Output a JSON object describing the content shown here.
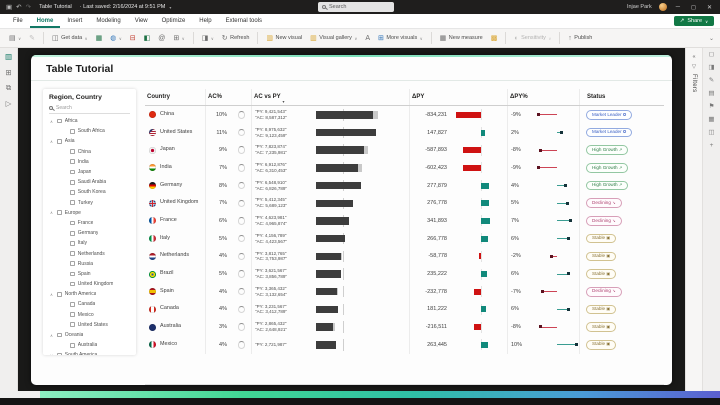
{
  "titlebar": {
    "title": "Table Tutorial",
    "saved_info": "· Last saved: 2/16/2024 at 9:51 PM",
    "search_placeholder": "Search",
    "user_name": "Injae Park"
  },
  "menubar": {
    "items": [
      "File",
      "Home",
      "Insert",
      "Modeling",
      "View",
      "Optimize",
      "Help",
      "External tools"
    ],
    "active": "Home",
    "share_label": "Share"
  },
  "ribbon": {
    "get_data": "Get data",
    "refresh": "Refresh",
    "new_visual": "New visual",
    "visual_gallery": "Visual gallery",
    "more_visuals": "More visuals",
    "new_measure": "New measure",
    "sensitivity": "Sensitivity",
    "publish": "Publish"
  },
  "left_rail": [
    {
      "name": "report-view-icon",
      "glyph": "▥",
      "active": true
    },
    {
      "name": "table-view-icon",
      "glyph": "⊞",
      "active": false
    },
    {
      "name": "model-view-icon",
      "glyph": "⧉",
      "active": false
    },
    {
      "name": "dax-query-view-icon",
      "glyph": "▷",
      "active": false
    }
  ],
  "right_rail": [
    {
      "name": "pane-icon-data",
      "glyph": "◻"
    },
    {
      "name": "pane-icon-build",
      "glyph": "◨"
    },
    {
      "name": "pane-icon-format",
      "glyph": "✎"
    },
    {
      "name": "pane-icon-analytics",
      "glyph": "▤"
    },
    {
      "name": "pane-icon-bookmarks",
      "glyph": "⚑"
    },
    {
      "name": "pane-icon-selection",
      "glyph": "▦"
    },
    {
      "name": "pane-icon-sync",
      "glyph": "◫"
    },
    {
      "name": "add-pane-icon",
      "glyph": "+"
    }
  ],
  "filters_pane": {
    "label": "Filters"
  },
  "report": {
    "title": "Table Tutorial"
  },
  "slicer": {
    "title": "Region, Country",
    "search_placeholder": "Search",
    "tree": [
      {
        "label": "Africa",
        "expanded": true,
        "children": [
          "South Africa"
        ]
      },
      {
        "label": "Asia",
        "expanded": true,
        "children": [
          "China",
          "India",
          "Japan",
          "Saudi Arabia",
          "South Korea",
          "Turkey"
        ]
      },
      {
        "label": "Europe",
        "expanded": true,
        "children": [
          "France",
          "Germany",
          "Italy",
          "Netherlands",
          "Russia",
          "Spain",
          "United Kingdom"
        ]
      },
      {
        "label": "North America",
        "expanded": true,
        "children": [
          "Canada",
          "Mexico",
          "United States"
        ]
      },
      {
        "label": "Oceania",
        "expanded": true,
        "children": [
          "Australia"
        ]
      },
      {
        "label": "South America",
        "expanded": false,
        "children": []
      }
    ]
  },
  "table": {
    "columns": [
      "Country",
      "AC%",
      "AC vs PY",
      "ΔPY",
      "ΔPY%",
      "Status"
    ],
    "sort_column": "AC vs PY",
    "rows": [
      {
        "name": "China",
        "flag": "china",
        "ac_pct": "10%",
        "py_label": "\"PY: 9,421,543\"",
        "ac_label": "\"AC: 8,587,312\"",
        "py": 9421543,
        "ac": 8587312,
        "delta": -834231,
        "delta_label": "-834,231",
        "dpct": -9,
        "dpct_label": "-9%",
        "status": "Market Leader",
        "status_type": "market-leader"
      },
      {
        "name": "United States",
        "flag": "united-states",
        "ac_pct": "11%",
        "py_label": "\"PY: 8,975,632\"",
        "ac_label": "\"AC: 9,123,459\"",
        "py": 8975632,
        "ac": 9123459,
        "delta": 147827,
        "delta_label": "147,827",
        "dpct": 2,
        "dpct_label": "2%",
        "status": "Market Leader",
        "status_type": "market-leader"
      },
      {
        "name": "Japan",
        "flag": "japan",
        "ac_pct": "9%",
        "py_label": "\"PY: 7,823,874\"",
        "ac_label": "\"AC: 7,235,981\"",
        "py": 7823874,
        "ac": 7235981,
        "delta": -587893,
        "delta_label": "-587,893",
        "dpct": -8,
        "dpct_label": "-8%",
        "status": "High Growth",
        "status_type": "high-growth"
      },
      {
        "name": "India",
        "flag": "india",
        "ac_pct": "7%",
        "py_label": "\"PY: 6,912,876\"",
        "ac_label": "\"AC: 6,310,453\"",
        "py": 6912876,
        "ac": 6310453,
        "delta": -602423,
        "delta_label": "-602,423",
        "dpct": -9,
        "dpct_label": "-9%",
        "status": "High Growth",
        "status_type": "high-growth"
      },
      {
        "name": "Germany",
        "flag": "germany",
        "ac_pct": "8%",
        "py_label": "\"PY: 6,548,910\"",
        "ac_label": "\"AC: 6,826,789\"",
        "py": 6548910,
        "ac": 6826789,
        "delta": 277879,
        "delta_label": "277,879",
        "dpct": 4,
        "dpct_label": "4%",
        "status": "High Growth",
        "status_type": "high-growth"
      },
      {
        "name": "United Kingdom",
        "flag": "united-kingdom",
        "ac_pct": "7%",
        "py_label": "\"PY: 5,412,345\"",
        "ac_label": "\"AC: 5,689,123\"",
        "py": 5412345,
        "ac": 5689123,
        "delta": 276778,
        "delta_label": "276,778",
        "dpct": 5,
        "dpct_label": "5%",
        "status": "Declining",
        "status_type": "declining"
      },
      {
        "name": "France",
        "flag": "france",
        "ac_pct": "6%",
        "py_label": "\"PY: 4,623,981\"",
        "ac_label": "\"AC: 4,965,874\"",
        "py": 4623981,
        "ac": 4965874,
        "delta": 341893,
        "delta_label": "341,893",
        "dpct": 7,
        "dpct_label": "7%",
        "status": "Declining",
        "status_type": "declining"
      },
      {
        "name": "Italy",
        "flag": "italy",
        "ac_pct": "5%",
        "py_label": "\"PY: 4,156,789\"",
        "ac_label": "\"AC: 4,423,567\"",
        "py": 4156789,
        "ac": 4423567,
        "delta": 266778,
        "delta_label": "266,778",
        "dpct": 6,
        "dpct_label": "6%",
        "status": "Stable",
        "status_type": "stable"
      },
      {
        "name": "Netherlands",
        "flag": "netherlands",
        "ac_pct": "4%",
        "py_label": "\"PY: 3,812,765\"",
        "ac_label": "\"AC: 3,753,987\"",
        "py": 3812765,
        "ac": 3753987,
        "delta": -58778,
        "delta_label": "-58,778",
        "dpct": -2,
        "dpct_label": "-2%",
        "status": "Stable",
        "status_type": "stable"
      },
      {
        "name": "Brazil",
        "flag": "brazil",
        "ac_pct": "5%",
        "py_label": "\"PY: 3,621,567\"",
        "ac_label": "\"AC: 3,856,789\"",
        "py": 3621567,
        "ac": 3856789,
        "delta": 235222,
        "delta_label": "235,222",
        "dpct": 6,
        "dpct_label": "6%",
        "status": "Stable",
        "status_type": "stable"
      },
      {
        "name": "Spain",
        "flag": "spain",
        "ac_pct": "4%",
        "py_label": "\"PY: 3,365,432\"",
        "ac_label": "\"AC: 3,132,654\"",
        "py": 3365432,
        "ac": 3132654,
        "delta": -232778,
        "delta_label": "-232,778",
        "dpct": -7,
        "dpct_label": "-7%",
        "status": "Declining",
        "status_type": "declining"
      },
      {
        "name": "Canada",
        "flag": "canada",
        "ac_pct": "4%",
        "py_label": "\"PY: 3,231,567\"",
        "ac_label": "\"AC: 3,412,789\"",
        "py": 3231567,
        "ac": 3412789,
        "delta": 181222,
        "delta_label": "181,222",
        "dpct": 6,
        "dpct_label": "6%",
        "status": "Stable",
        "status_type": "stable"
      },
      {
        "name": "Australia",
        "flag": "australia",
        "ac_pct": "3%",
        "py_label": "\"PY: 2,865,432\"",
        "ac_label": "\"AC: 2,648,921\"",
        "py": 2865432,
        "ac": 2648921,
        "delta": -216511,
        "delta_label": "-216,511",
        "dpct": -8,
        "dpct_label": "-8%",
        "status": "Stable",
        "status_type": "stable"
      },
      {
        "name": "Mexico",
        "flag": "mexico",
        "ac_pct": "4%",
        "py_label": "\"PY: 2,721,987\"",
        "ac_label": "",
        "py": 2721987,
        "ac": null,
        "delta": 263445,
        "delta_label": "263,445",
        "dpct": 10,
        "dpct_label": "10%",
        "status": "Stable",
        "status_type": "stable"
      }
    ]
  },
  "icons": {
    "status": {
      "market-leader": "✪",
      "high-growth": "↗",
      "declining": "↘",
      "stable": "▣"
    },
    "titlebar": {
      "save": "▣",
      "undo": "↶",
      "redo": "↷"
    },
    "share": "↗",
    "menu_caret": "▾"
  },
  "colors": {
    "accent_teal": "#117865",
    "share_green": "#117845",
    "negative_bar": "#cf1212",
    "positive_bar": "#11897b",
    "ac_bar": "#3d3d3d",
    "bottom_gradient": [
      "#8deec2",
      "#41d694",
      "#2fbfa6",
      "#4a9bd8",
      "#5b5fd0"
    ]
  }
}
